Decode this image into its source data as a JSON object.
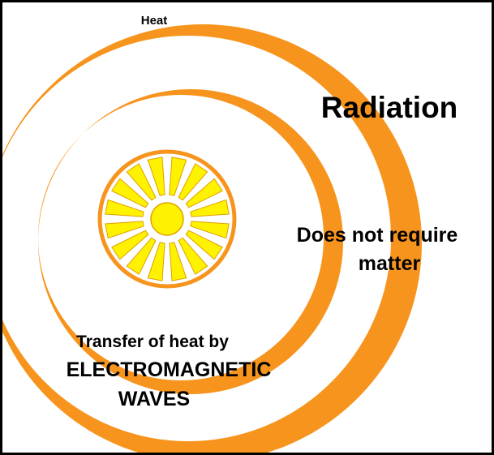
{
  "header": {
    "title": "Heat"
  },
  "diagram": {
    "title": "Radiation",
    "note": [
      "Does not require",
      "matter"
    ],
    "caption": [
      "Transfer of heat by",
      "ELECTROMAGNETIC",
      "WAVES"
    ]
  }
}
